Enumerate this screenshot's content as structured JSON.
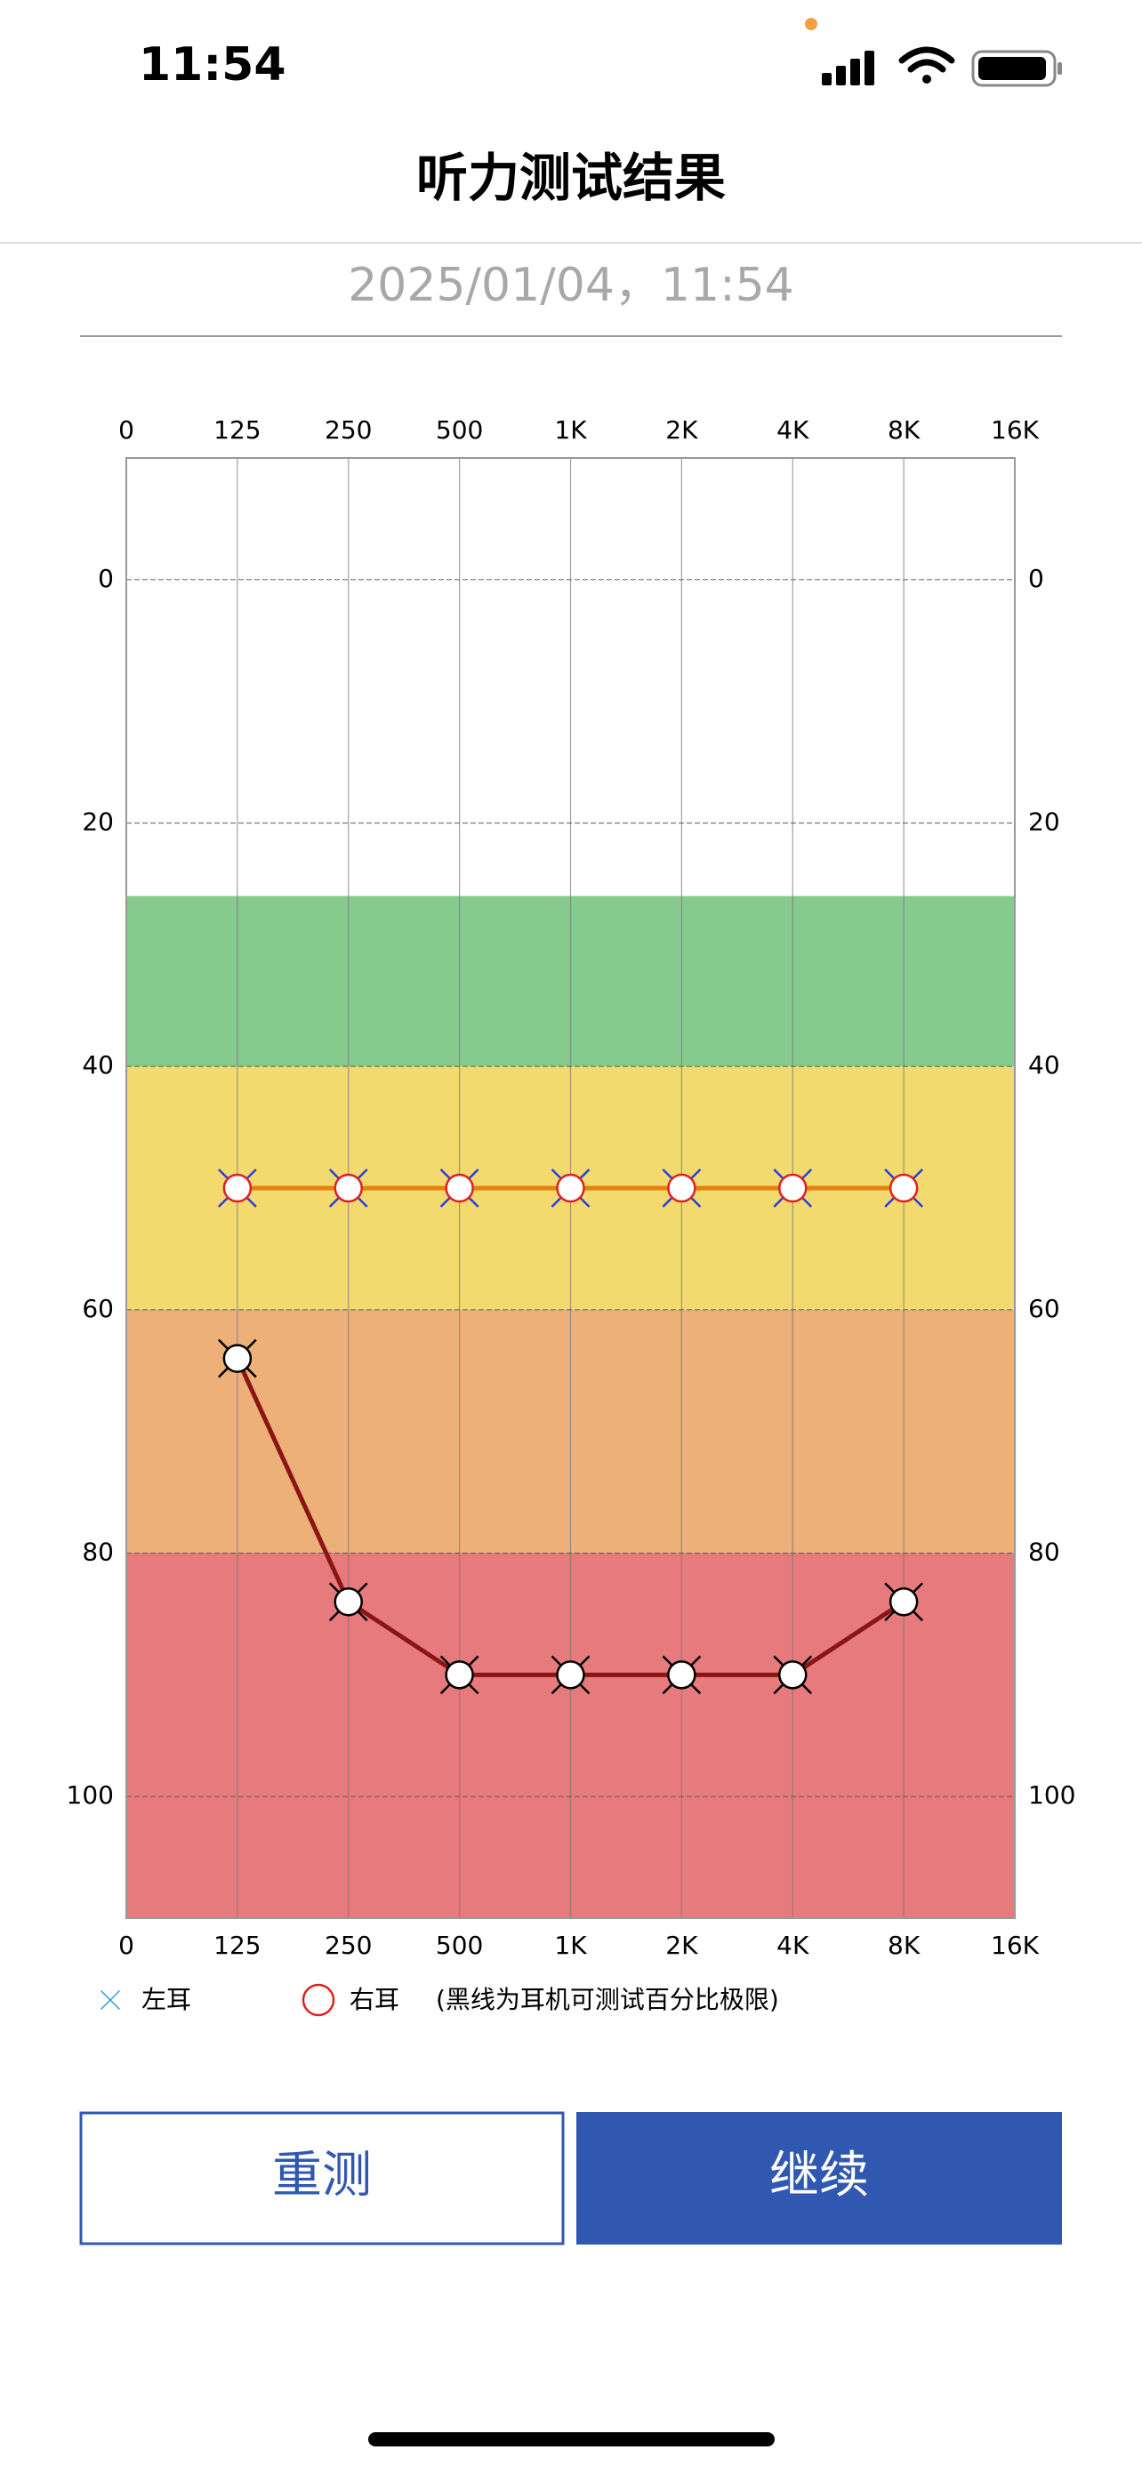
{
  "status_bar": {
    "time": "11:54"
  },
  "header": {
    "title": "听力测试结果"
  },
  "date": "2025/01/04，11:54",
  "chart_data": {
    "type": "line",
    "categories": [
      "0",
      "125",
      "250",
      "500",
      "1K",
      "2K",
      "4K",
      "8K",
      "16K"
    ],
    "ylim": [
      -10,
      110
    ],
    "y_inverted": true,
    "yticks": [
      0,
      20,
      40,
      60,
      80,
      100
    ],
    "grid": true,
    "bands": [
      {
        "from": 26,
        "to": 40,
        "color": "#86ca8e"
      },
      {
        "from": 40,
        "to": 60,
        "color": "#f2da6e"
      },
      {
        "from": 60,
        "to": 80,
        "color": "#ecb078"
      },
      {
        "from": 80,
        "to": 110,
        "color": "#e67a7c"
      }
    ],
    "series": [
      {
        "name": "左耳",
        "color": "#2a3ce0",
        "marker": "x",
        "values": [
          null,
          50,
          50,
          50,
          50,
          50,
          50,
          50,
          null
        ]
      },
      {
        "name": "右耳",
        "color": "#e02020",
        "line_color": "#e8800e",
        "marker": "circle",
        "values": [
          null,
          50,
          50,
          50,
          50,
          50,
          50,
          50,
          null
        ]
      },
      {
        "color": "#000000",
        "line_color": "#8b1414",
        "marker": "circle-x",
        "values": [
          null,
          64,
          84,
          90,
          90,
          90,
          90,
          84,
          null
        ]
      }
    ],
    "note": "(黑线为耳机可测试百分比极限)"
  },
  "buttons": [
    "重测",
    "继续"
  ]
}
